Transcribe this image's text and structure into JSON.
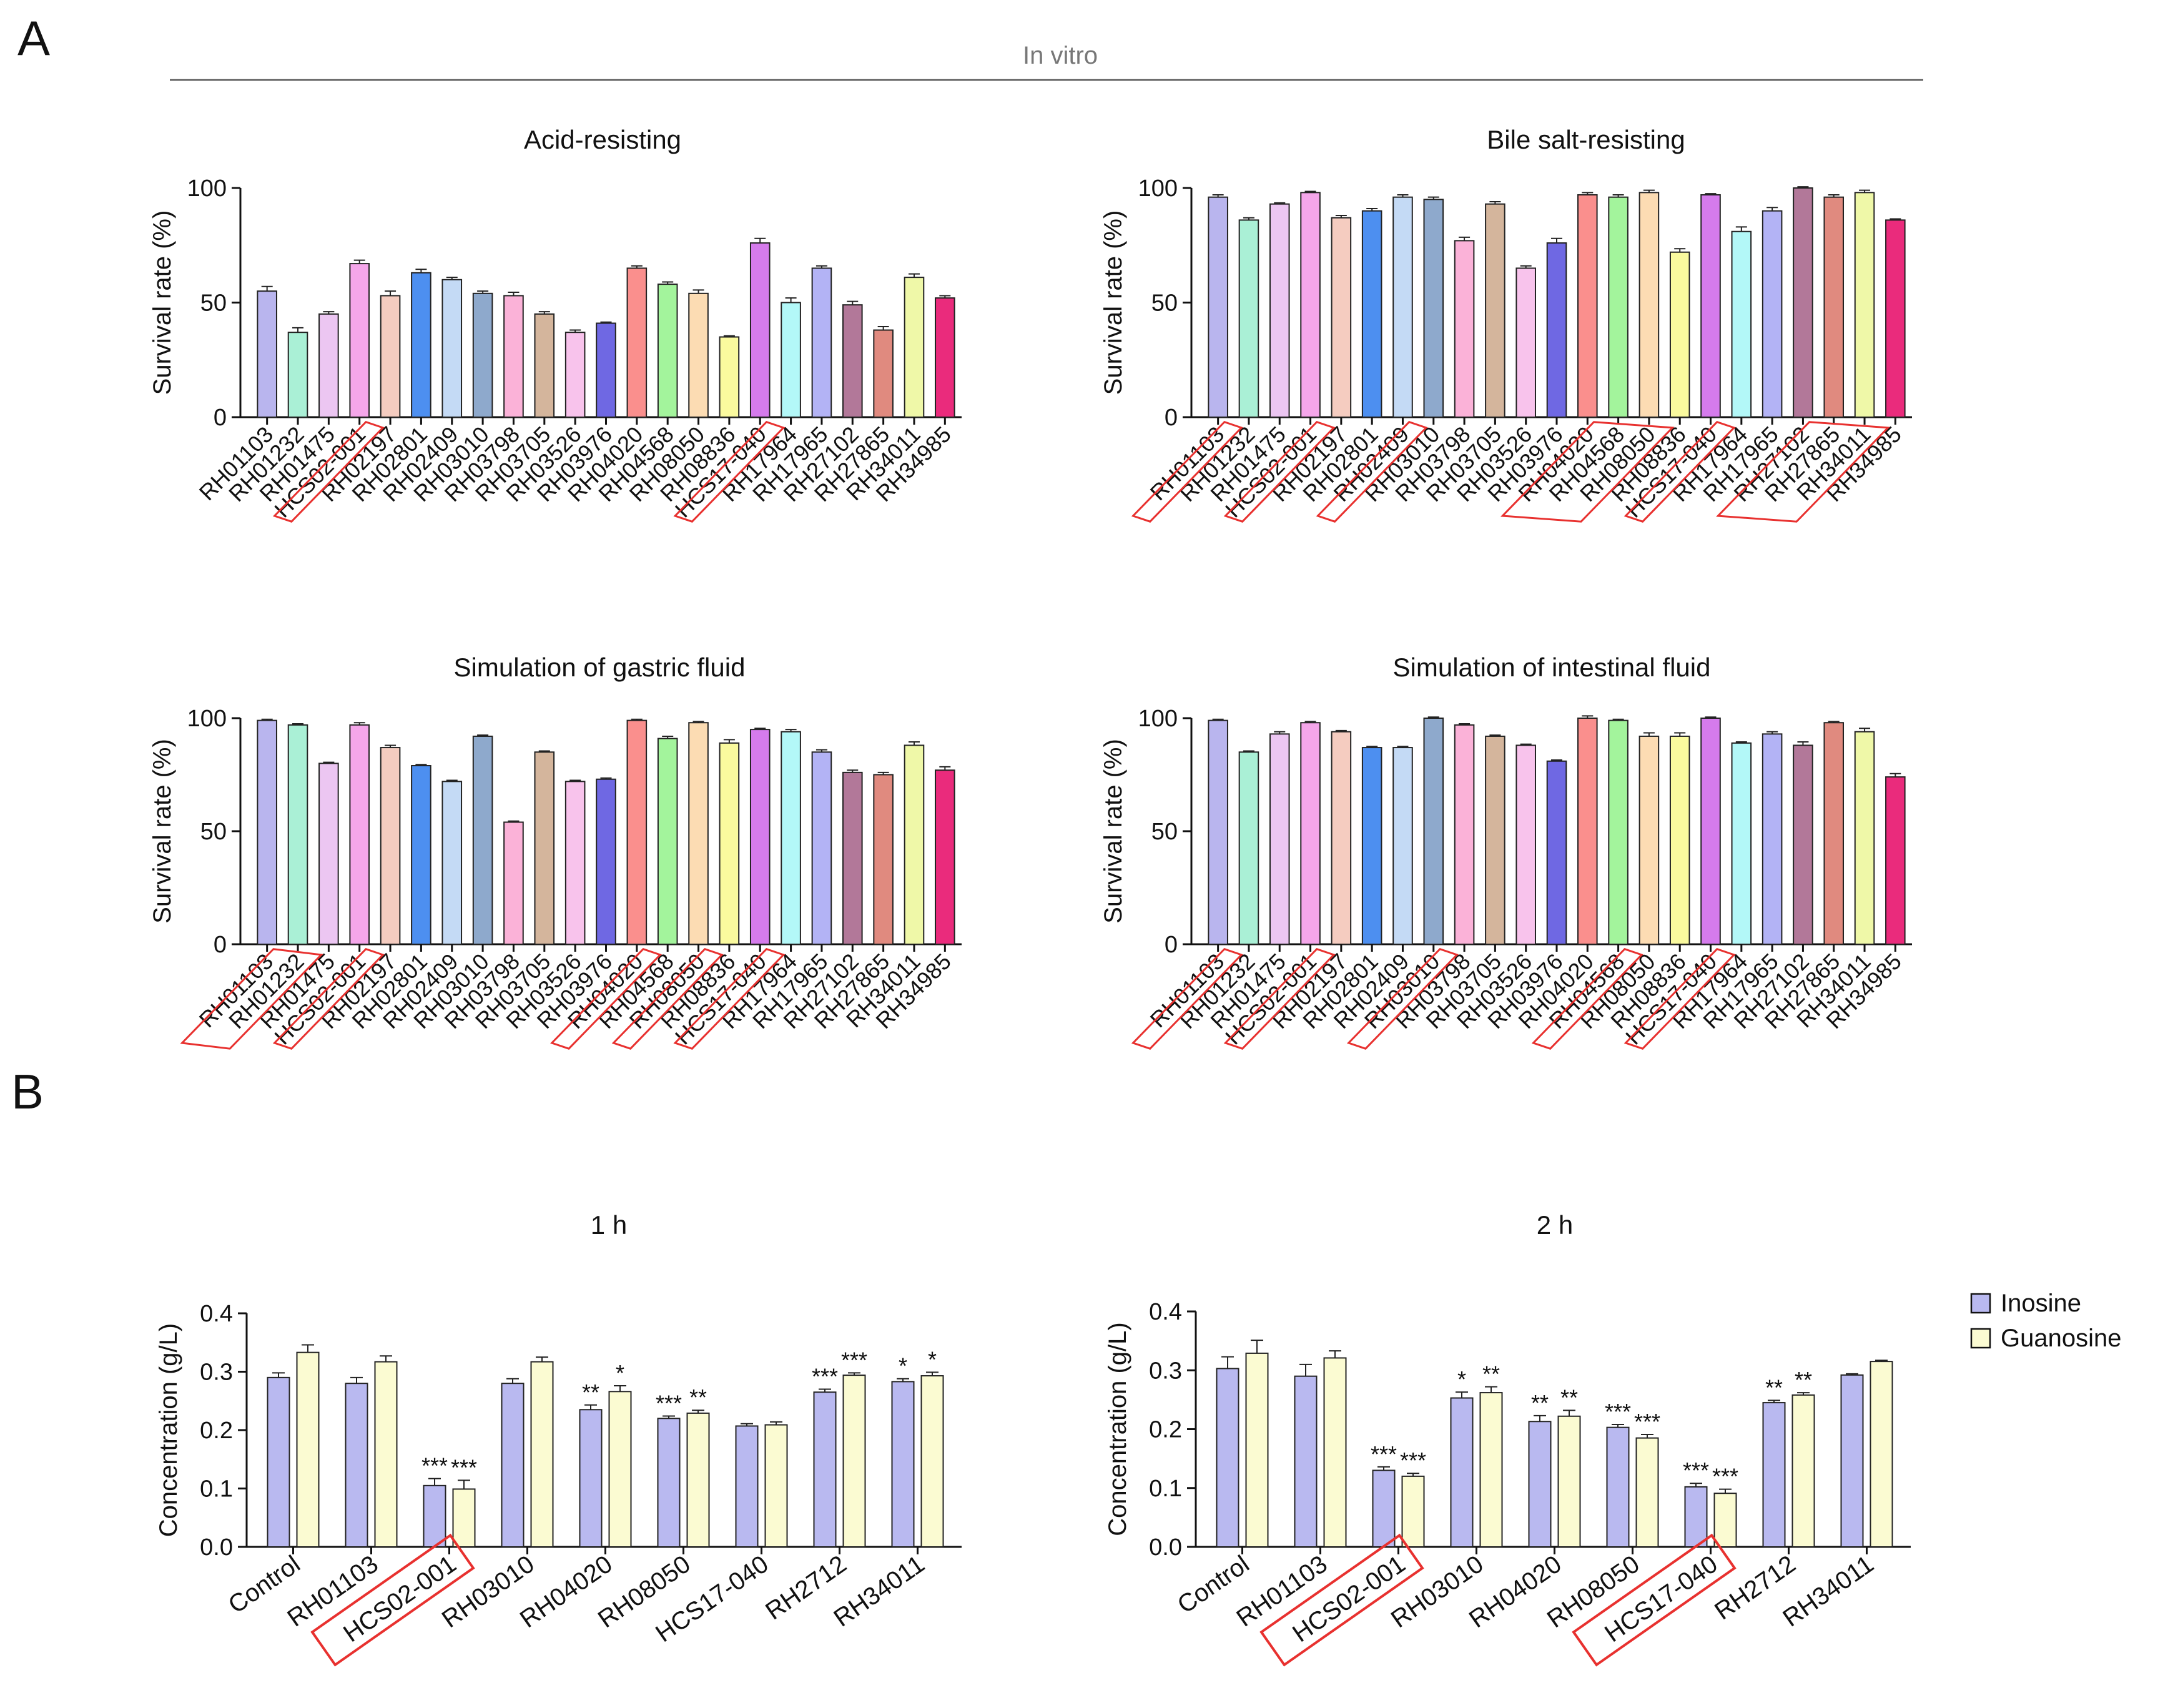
{
  "figure": {
    "panel_a_label": "A",
    "panel_b_label": "B",
    "in_vitro_label": "In vitro"
  },
  "chart_data": [
    {
      "id": "acid",
      "panel": "A",
      "type": "bar",
      "title": "Acid-resisting",
      "xlabel": "",
      "ylabel": "Survival rate (%)",
      "ylim": [
        0,
        100
      ],
      "yticks": [
        0,
        50,
        100
      ],
      "categories": [
        "RH01103",
        "RH01232",
        "RH01475",
        "HCS02-001",
        "RH02197",
        "RH02801",
        "RH02409",
        "RH03010",
        "RH03798",
        "RH03705",
        "RH03526",
        "RH03976",
        "RH04020",
        "RH04568",
        "RH08050",
        "RH08836",
        "HCS17-040",
        "RH17964",
        "RH17965",
        "RH27102",
        "RH27865",
        "RH34011",
        "RH34985"
      ],
      "values": [
        55,
        37,
        45,
        67,
        53,
        63,
        60,
        54,
        53,
        45,
        37,
        41,
        65,
        58,
        54,
        35,
        76,
        50,
        65,
        49,
        38,
        61,
        52
      ],
      "errors": [
        2,
        2,
        1,
        1.5,
        2,
        1.5,
        1,
        1,
        1.5,
        1,
        1,
        0.5,
        1,
        1,
        1.5,
        0.5,
        2,
        2,
        1,
        1.5,
        1.5,
        1.5,
        1
      ],
      "highlighted": [
        [
          "HCS02-001"
        ],
        [
          "HCS17-040"
        ]
      ]
    },
    {
      "id": "bile",
      "panel": "A",
      "type": "bar",
      "title": "Bile salt-resisting",
      "xlabel": "",
      "ylabel": "Survival rate (%)",
      "ylim": [
        0,
        100
      ],
      "yticks": [
        0,
        50,
        100
      ],
      "categories": [
        "RH01103",
        "RH01232",
        "RH01475",
        "HCS02-001",
        "RH02197",
        "RH02801",
        "RH02409",
        "RH03010",
        "RH03798",
        "RH03705",
        "RH03526",
        "RH03976",
        "RH04020",
        "RH04568",
        "RH08050",
        "RH08836",
        "HCS17-040",
        "RH17964",
        "RH17965",
        "RH27102",
        "RH27865",
        "RH34011",
        "RH34985"
      ],
      "values": [
        96,
        86,
        93,
        98,
        87,
        90,
        96,
        95,
        77,
        93,
        65,
        76,
        97,
        96,
        98,
        72,
        97,
        81,
        90,
        100,
        96,
        98,
        86
      ],
      "errors": [
        1,
        1,
        0.5,
        0.5,
        1,
        1,
        1,
        1,
        1.5,
        1,
        1,
        2,
        1,
        1,
        1,
        1.5,
        0.5,
        2,
        1.5,
        0.5,
        1,
        1,
        0.5
      ],
      "highlighted": [
        [
          "RH01103"
        ],
        [
          "HCS02-001"
        ],
        [
          "RH02409"
        ],
        [
          "RH04020",
          "RH04568",
          "RH08050"
        ],
        [
          "HCS17-040"
        ],
        [
          "RH27102",
          "RH27865",
          "RH34011"
        ]
      ]
    },
    {
      "id": "gastric",
      "panel": "A",
      "type": "bar",
      "title": "Simulation of gastric fluid",
      "xlabel": "",
      "ylabel": "Survival rate (%)",
      "ylim": [
        0,
        100
      ],
      "yticks": [
        0,
        50,
        100
      ],
      "categories": [
        "RH01103",
        "RH01232",
        "RH01475",
        "HCS02-001",
        "RH02197",
        "RH02801",
        "RH02409",
        "RH03010",
        "RH03798",
        "RH03705",
        "RH03526",
        "RH03976",
        "RH04020",
        "RH04568",
        "RH08050",
        "RH08836",
        "HCS17-040",
        "RH17964",
        "RH17965",
        "RH27102",
        "RH27865",
        "RH34011",
        "RH34985"
      ],
      "values": [
        99,
        97,
        80,
        97,
        87,
        79,
        72,
        92,
        54,
        85,
        72,
        73,
        99,
        91,
        98,
        89,
        95,
        94,
        85,
        76,
        75,
        88,
        77
      ],
      "errors": [
        0.5,
        0.5,
        0.5,
        1,
        1,
        0.5,
        0.5,
        0.5,
        0.5,
        0.5,
        0.5,
        0.5,
        0.5,
        1,
        0.5,
        1.5,
        0.5,
        1,
        1,
        1,
        1,
        1.5,
        1.5
      ],
      "highlighted": [
        [
          "RH01103",
          "RH01232"
        ],
        [
          "HCS02-001"
        ],
        [
          "RH04020"
        ],
        [
          "RH08050"
        ],
        [
          "HCS17-040"
        ]
      ]
    },
    {
      "id": "intestinal",
      "panel": "A",
      "type": "bar",
      "title": "Simulation of intestinal fluid",
      "xlabel": "",
      "ylabel": "Survival rate (%)",
      "ylim": [
        0,
        100
      ],
      "yticks": [
        0,
        50,
        100
      ],
      "categories": [
        "RH01103",
        "RH01232",
        "RH01475",
        "HCS02-001",
        "RH02197",
        "RH02801",
        "RH02409",
        "RH03010",
        "RH03798",
        "RH03705",
        "RH03526",
        "RH03976",
        "RH04020",
        "RH04568",
        "RH08050",
        "RH08836",
        "HCS17-040",
        "RH17964",
        "RH17965",
        "RH27102",
        "RH27865",
        "RH34011",
        "RH34985"
      ],
      "values": [
        99,
        85,
        93,
        98,
        94,
        87,
        87,
        100,
        97,
        92,
        88,
        81,
        100,
        99,
        92,
        92,
        100,
        89,
        93,
        88,
        98,
        94,
        74
      ],
      "errors": [
        0.5,
        0.5,
        1,
        0.5,
        0.5,
        0.5,
        0.5,
        0.5,
        0.5,
        0.5,
        0.5,
        0.5,
        1,
        0.5,
        1.5,
        1.5,
        0.5,
        0.5,
        1,
        1.5,
        0.5,
        1.5,
        1.5
      ],
      "highlighted": [
        [
          "RH01103"
        ],
        [
          "HCS02-001"
        ],
        [
          "RH03010"
        ],
        [
          "RH04568"
        ],
        [
          "HCS17-040"
        ]
      ]
    },
    {
      "id": "conc1h",
      "panel": "B",
      "type": "bar",
      "title": "1 h",
      "xlabel": "",
      "ylabel": "Concentration (g/L)",
      "ylim": [
        0,
        0.4
      ],
      "yticks": [
        0.0,
        0.1,
        0.2,
        0.3,
        0.4
      ],
      "ytick_labels": [
        "0.0",
        "0.1",
        "0.2",
        "0.3",
        "0.4"
      ],
      "categories": [
        "Control",
        "RH01103",
        "HCS02-001",
        "RH03010",
        "RH04020",
        "RH08050",
        "HCS17-040",
        "RH2712",
        "RH34011"
      ],
      "series": [
        {
          "name": "Inosine",
          "values": [
            0.29,
            0.28,
            0.105,
            0.28,
            0.235,
            0.22,
            0.207,
            0.265,
            0.283
          ],
          "errors": [
            0.008,
            0.01,
            0.012,
            0.008,
            0.008,
            0.004,
            0.004,
            0.005,
            0.005
          ],
          "sig": [
            "",
            "",
            "***",
            "",
            "**",
            "***",
            "",
            "***",
            "*"
          ]
        },
        {
          "name": "Guanosine",
          "values": [
            0.333,
            0.317,
            0.099,
            0.317,
            0.266,
            0.229,
            0.209,
            0.294,
            0.293
          ],
          "errors": [
            0.013,
            0.01,
            0.015,
            0.008,
            0.01,
            0.005,
            0.005,
            0.004,
            0.006
          ],
          "sig": [
            "",
            "",
            "***",
            "",
            "*",
            "**",
            "",
            "***",
            "*"
          ]
        }
      ],
      "highlighted": [
        [
          "HCS02-001"
        ]
      ]
    },
    {
      "id": "conc2h",
      "panel": "B",
      "type": "bar",
      "title": "2 h",
      "xlabel": "",
      "ylabel": "Concentration (g/L)",
      "ylim": [
        0,
        0.4
      ],
      "yticks": [
        0.0,
        0.1,
        0.2,
        0.3,
        0.4
      ],
      "ytick_labels": [
        "0.0",
        "0.1",
        "0.2",
        "0.3",
        "0.4"
      ],
      "categories": [
        "Control",
        "RH01103",
        "HCS02-001",
        "RH03010",
        "RH04020",
        "RH08050",
        "HCS17-040",
        "RH2712",
        "RH34011"
      ],
      "series": [
        {
          "name": "Inosine",
          "values": [
            0.303,
            0.29,
            0.13,
            0.253,
            0.213,
            0.203,
            0.102,
            0.245,
            0.292
          ],
          "errors": [
            0.02,
            0.02,
            0.006,
            0.01,
            0.01,
            0.005,
            0.006,
            0.004,
            0.002
          ],
          "sig": [
            "",
            "",
            "***",
            "*",
            "**",
            "***",
            "***",
            "**",
            ""
          ]
        },
        {
          "name": "Guanosine",
          "values": [
            0.329,
            0.321,
            0.12,
            0.262,
            0.222,
            0.185,
            0.091,
            0.258,
            0.315
          ],
          "errors": [
            0.022,
            0.012,
            0.005,
            0.01,
            0.01,
            0.006,
            0.007,
            0.004,
            0.002
          ],
          "sig": [
            "",
            "",
            "***",
            "**",
            "**",
            "***",
            "***",
            "**",
            ""
          ]
        }
      ],
      "highlighted": [
        [
          "HCS02-001"
        ],
        [
          "HCS17-040"
        ]
      ]
    }
  ],
  "legend": {
    "items": [
      {
        "label": "Inosine",
        "color": "#b9b9f0"
      },
      {
        "label": "Guanosine",
        "color": "#fbfbd2"
      }
    ]
  },
  "colors": {
    "bar_palette_a": [
      "#b9b5ee",
      "#aaf0d6",
      "#ecc6f2",
      "#f5a6ea",
      "#f5ccc0",
      "#4d8ff0",
      "#c4daf5",
      "#8ea9cc",
      "#fbb2d8",
      "#d4b59c",
      "#f8c3ec",
      "#6f68e3",
      "#fa8f8d",
      "#a3f49c",
      "#fcdcb3",
      "#fafa9e",
      "#d57bec",
      "#b3f8f8",
      "#b3b3f5",
      "#b27899",
      "#e08a7f",
      "#eff8a8",
      "#ea2b7c"
    ],
    "inosine": "#b9b9f0",
    "guanosine": "#fbfbd2",
    "highlight": "#e8312f",
    "divider": "#555555"
  }
}
